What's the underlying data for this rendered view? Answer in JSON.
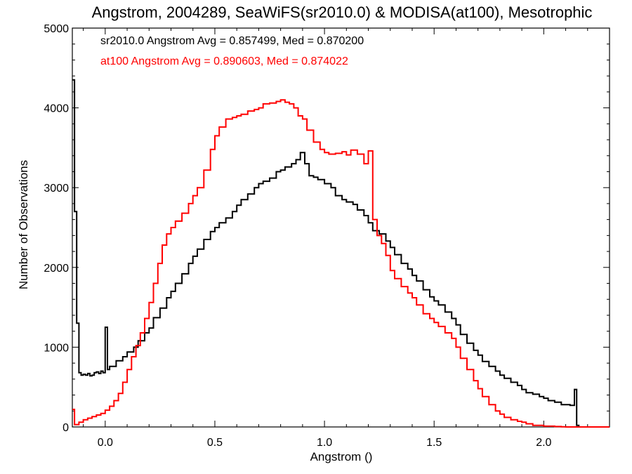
{
  "chart_data": {
    "type": "line",
    "title": "Angstrom, 2004289, SeaWiFS(sr2010.0) & MODISA(at100), Mesotrophic",
    "xlabel": "Angstrom ()",
    "ylabel": "Number of Observations",
    "xlim": [
      -0.15,
      2.3
    ],
    "ylim": [
      0,
      5000
    ],
    "x_ticks": [
      0.0,
      0.5,
      1.0,
      1.5,
      2.0
    ],
    "x_tick_labels": [
      "0.0",
      "0.5",
      "1.0",
      "1.5",
      "2.0"
    ],
    "y_ticks": [
      0,
      1000,
      2000,
      3000,
      4000,
      5000
    ],
    "y_tick_labels": [
      "0",
      "1000",
      "2000",
      "3000",
      "4000",
      "5000"
    ],
    "grid": false,
    "step": true,
    "annotations": [
      {
        "text": "sr2010.0 Angstrom Avg = 0.857499, Med = 0.870200",
        "color": "#000000"
      },
      {
        "text": "at100 Angstrom Avg = 0.890603, Med = 0.874022",
        "color": "#ff0000"
      }
    ],
    "series": [
      {
        "color": "#000000",
        "x": [
          -0.15,
          -0.14,
          -0.13,
          -0.12,
          -0.11,
          -0.1,
          -0.09,
          -0.08,
          -0.07,
          -0.06,
          -0.05,
          -0.04,
          -0.03,
          -0.02,
          -0.01,
          0.0,
          0.01,
          0.02,
          0.05,
          0.08,
          0.1,
          0.13,
          0.15,
          0.18,
          0.2,
          0.22,
          0.25,
          0.28,
          0.3,
          0.32,
          0.35,
          0.38,
          0.4,
          0.42,
          0.45,
          0.48,
          0.5,
          0.52,
          0.55,
          0.58,
          0.6,
          0.62,
          0.65,
          0.68,
          0.7,
          0.72,
          0.75,
          0.78,
          0.8,
          0.82,
          0.85,
          0.87,
          0.89,
          0.91,
          0.93,
          0.95,
          0.97,
          1.0,
          1.03,
          1.05,
          1.08,
          1.1,
          1.13,
          1.15,
          1.18,
          1.2,
          1.22,
          1.25,
          1.28,
          1.3,
          1.32,
          1.35,
          1.38,
          1.4,
          1.42,
          1.45,
          1.48,
          1.5,
          1.52,
          1.55,
          1.58,
          1.6,
          1.62,
          1.65,
          1.68,
          1.7,
          1.72,
          1.75,
          1.78,
          1.8,
          1.82,
          1.85,
          1.88,
          1.9,
          1.92,
          1.95,
          1.98,
          2.0,
          2.02,
          2.05,
          2.08,
          2.1,
          2.12,
          2.14,
          2.15,
          2.16,
          2.2,
          2.3
        ],
        "y": [
          4350,
          2700,
          1300,
          680,
          650,
          660,
          650,
          670,
          640,
          650,
          680,
          690,
          670,
          700,
          680,
          1250,
          720,
          760,
          830,
          880,
          940,
          1000,
          1080,
          1180,
          1240,
          1370,
          1490,
          1620,
          1700,
          1800,
          1920,
          2050,
          2140,
          2230,
          2350,
          2450,
          2500,
          2560,
          2620,
          2700,
          2780,
          2850,
          2920,
          3000,
          3050,
          3080,
          3120,
          3200,
          3220,
          3260,
          3300,
          3350,
          3440,
          3300,
          3150,
          3130,
          3100,
          3050,
          3000,
          2900,
          2850,
          2820,
          2790,
          2720,
          2650,
          2560,
          2460,
          2420,
          2330,
          2250,
          2160,
          2050,
          1980,
          1900,
          1830,
          1720,
          1630,
          1580,
          1530,
          1440,
          1360,
          1280,
          1160,
          1050,
          960,
          900,
          820,
          760,
          700,
          650,
          610,
          560,
          520,
          470,
          430,
          410,
          380,
          360,
          330,
          310,
          280,
          280,
          270,
          470,
          20,
          0,
          0,
          0
        ]
      },
      {
        "color": "#ff0000",
        "x": [
          -0.15,
          -0.14,
          -0.12,
          -0.1,
          -0.08,
          -0.06,
          -0.04,
          -0.02,
          0.0,
          0.02,
          0.04,
          0.06,
          0.08,
          0.1,
          0.12,
          0.14,
          0.16,
          0.18,
          0.2,
          0.22,
          0.24,
          0.26,
          0.28,
          0.3,
          0.32,
          0.35,
          0.38,
          0.4,
          0.42,
          0.45,
          0.48,
          0.5,
          0.52,
          0.55,
          0.58,
          0.6,
          0.62,
          0.65,
          0.68,
          0.7,
          0.72,
          0.75,
          0.78,
          0.8,
          0.82,
          0.84,
          0.86,
          0.88,
          0.9,
          0.92,
          0.95,
          0.98,
          1.0,
          1.02,
          1.05,
          1.08,
          1.1,
          1.12,
          1.15,
          1.18,
          1.2,
          1.22,
          1.24,
          1.26,
          1.28,
          1.3,
          1.32,
          1.35,
          1.38,
          1.4,
          1.42,
          1.45,
          1.48,
          1.5,
          1.52,
          1.55,
          1.58,
          1.6,
          1.62,
          1.65,
          1.68,
          1.7,
          1.72,
          1.75,
          1.78,
          1.8,
          1.82,
          1.85,
          1.88,
          1.9,
          1.92,
          1.95,
          1.98,
          2.0,
          2.02,
          2.05,
          2.08,
          2.1,
          2.12,
          2.14,
          2.16,
          2.2,
          2.3
        ],
        "y": [
          220,
          30,
          60,
          90,
          110,
          130,
          150,
          170,
          210,
          260,
          330,
          420,
          560,
          720,
          880,
          1020,
          1180,
          1360,
          1560,
          1800,
          2050,
          2280,
          2420,
          2500,
          2580,
          2680,
          2800,
          2900,
          3000,
          3220,
          3480,
          3650,
          3760,
          3860,
          3880,
          3900,
          3920,
          3960,
          3980,
          4000,
          4050,
          4060,
          4080,
          4100,
          4070,
          4050,
          4000,
          3900,
          3860,
          3720,
          3570,
          3480,
          3440,
          3420,
          3430,
          3450,
          3410,
          3470,
          3420,
          3300,
          3460,
          2600,
          2400,
          2300,
          2150,
          1960,
          1860,
          1760,
          1680,
          1620,
          1530,
          1420,
          1360,
          1310,
          1260,
          1180,
          1110,
          1000,
          860,
          720,
          580,
          480,
          380,
          280,
          200,
          160,
          120,
          90,
          70,
          60,
          40,
          20,
          20,
          10,
          10,
          5,
          3,
          0,
          0,
          0,
          0,
          0,
          0
        ]
      }
    ]
  }
}
